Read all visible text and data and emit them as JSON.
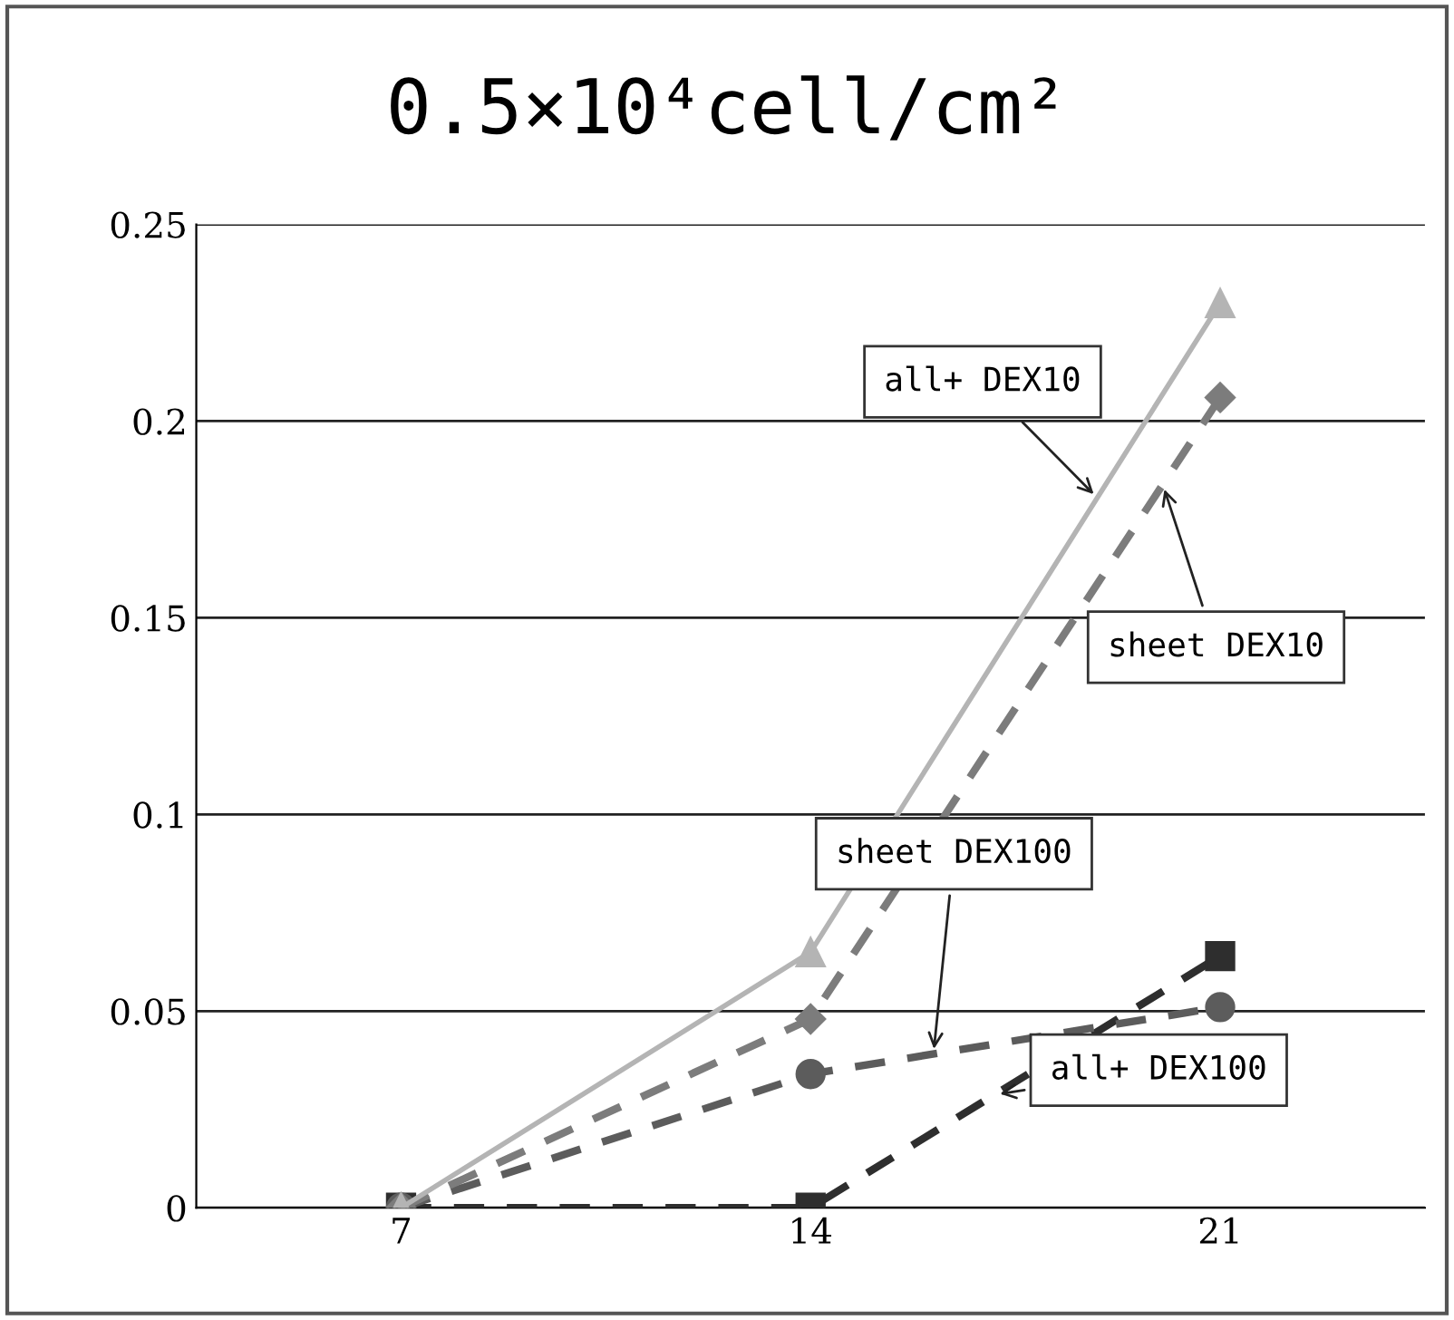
{
  "chart_data": {
    "type": "line",
    "title": "0.5×10⁴cell/cm²",
    "categories": [
      "7",
      "14",
      "21"
    ],
    "series": [
      {
        "name": "all+ DEX10",
        "color": "#b4b4b4",
        "values": [
          0,
          0.065,
          0.23
        ],
        "marker": "triangle",
        "line_style": "solid"
      },
      {
        "name": "sheet DEX10",
        "color": "#7c7c7c",
        "values": [
          0,
          0.048,
          0.206
        ],
        "marker": "diamond",
        "line_style": "dashed"
      },
      {
        "name": "sheet DEX100",
        "color": "#5c5c5c",
        "values": [
          0,
          0.034,
          0.051
        ],
        "marker": "circle",
        "line_style": "dashed"
      },
      {
        "name": "all+ DEX100",
        "color": "#2e2e2e",
        "values": [
          0,
          0,
          0.064
        ],
        "marker": "square",
        "line_style": "dashed"
      }
    ],
    "ylim": [
      0,
      0.25
    ],
    "yticks": [
      0,
      0.05,
      0.1,
      0.15,
      0.2,
      0.25
    ],
    "grid": "y",
    "legend": false
  }
}
